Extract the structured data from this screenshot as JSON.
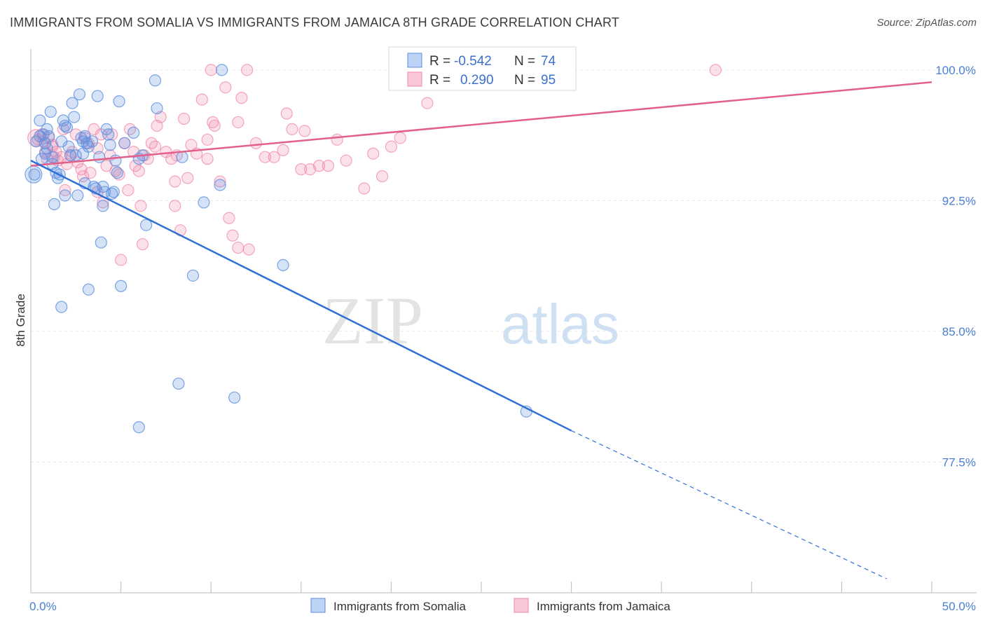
{
  "title": "IMMIGRANTS FROM SOMALIA VS IMMIGRANTS FROM JAMAICA 8TH GRADE CORRELATION CHART",
  "source": "Source: ZipAtlas.com",
  "watermark": {
    "zip": "ZIP",
    "atlas": "atlas"
  },
  "colors": {
    "somalia": "#5b8ee0",
    "somalia_line": "#2f6fd6",
    "jamaica": "#f08aaa",
    "jamaica_line": "#e2608a",
    "tick_text": "#4a7fd1",
    "grid": "#e6e6e6"
  },
  "legend_stats": [
    {
      "r_label": "R =",
      "r_value": "-0.542",
      "n_label": "N =",
      "n_value": "74"
    },
    {
      "r_label": "R =",
      "r_value": "0.290",
      "n_label": "N =",
      "n_value": "95"
    }
  ],
  "chart_data": {
    "type": "scatter",
    "title": "IMMIGRANTS FROM SOMALIA VS IMMIGRANTS FROM JAMAICA 8TH GRADE CORRELATION CHART",
    "ylabel": "8th Grade",
    "xlim": [
      0,
      50
    ],
    "ylim": [
      70,
      101.2
    ],
    "x_tick_labels": [
      "0.0%",
      "50.0%"
    ],
    "y_ticks": [
      77.5,
      85.0,
      92.5,
      100.0
    ],
    "y_tick_labels": [
      "77.5%",
      "85.0%",
      "92.5%",
      "100.0%"
    ],
    "grid": true,
    "legend_position": "bottom",
    "series": [
      {
        "name": "Immigrants from Somalia",
        "color": "#5b8ee0",
        "trend": {
          "x": [
            0,
            30
          ],
          "y": [
            94.8,
            79.3
          ],
          "dashed_to": [
            47.5,
            70.8
          ]
        },
        "points": [
          [
            0.2,
            94.0
          ],
          [
            0.3,
            95.9
          ],
          [
            0.5,
            96.2
          ],
          [
            0.5,
            97.1
          ],
          [
            0.6,
            94.9
          ],
          [
            0.7,
            96.3
          ],
          [
            0.8,
            95.8
          ],
          [
            0.8,
            95.2
          ],
          [
            0.9,
            95.5
          ],
          [
            1.0,
            96.2
          ],
          [
            1.1,
            97.6
          ],
          [
            1.2,
            94.6
          ],
          [
            1.2,
            95.0
          ],
          [
            1.3,
            92.3
          ],
          [
            1.4,
            94.1
          ],
          [
            1.5,
            93.8
          ],
          [
            1.6,
            94.0
          ],
          [
            1.7,
            95.9
          ],
          [
            1.8,
            97.1
          ],
          [
            1.9,
            96.8
          ],
          [
            2.0,
            96.7
          ],
          [
            2.1,
            95.6
          ],
          [
            2.2,
            95.1
          ],
          [
            2.3,
            98.1
          ],
          [
            2.4,
            97.3
          ],
          [
            2.5,
            95.1
          ],
          [
            2.6,
            92.8
          ],
          [
            2.7,
            98.6
          ],
          [
            2.8,
            96.1
          ],
          [
            2.9,
            95.2
          ],
          [
            3.0,
            93.5
          ],
          [
            3.1,
            95.8
          ],
          [
            3.2,
            95.6
          ],
          [
            3.4,
            95.9
          ],
          [
            3.5,
            93.3
          ],
          [
            3.6,
            93.2
          ],
          [
            3.7,
            98.5
          ],
          [
            3.8,
            95.0
          ],
          [
            3.9,
            90.1
          ],
          [
            4.0,
            92.2
          ],
          [
            4.1,
            93.0
          ],
          [
            4.2,
            96.6
          ],
          [
            4.3,
            96.3
          ],
          [
            4.4,
            95.7
          ],
          [
            4.5,
            92.9
          ],
          [
            4.6,
            93.0
          ],
          [
            4.7,
            94.8
          ],
          [
            4.8,
            94.1
          ],
          [
            4.9,
            98.2
          ],
          [
            5.0,
            87.6
          ],
          [
            5.7,
            96.4
          ],
          [
            6.0,
            94.9
          ],
          [
            6.2,
            95.1
          ],
          [
            6.4,
            91.1
          ],
          [
            6.9,
            99.4
          ],
          [
            7.0,
            97.8
          ],
          [
            8.4,
            95.0
          ],
          [
            9.0,
            88.2
          ],
          [
            9.6,
            92.4
          ],
          [
            10.5,
            93.4
          ],
          [
            10.6,
            100.0
          ],
          [
            1.7,
            86.4
          ],
          [
            3.2,
            87.4
          ],
          [
            8.2,
            82.0
          ],
          [
            11.3,
            81.2
          ],
          [
            6.0,
            79.5
          ],
          [
            14.0,
            88.8
          ],
          [
            27.5,
            80.4
          ],
          [
            2.9,
            95.9
          ],
          [
            1.9,
            92.8
          ],
          [
            3.0,
            96.2
          ],
          [
            4.0,
            93.3
          ],
          [
            5.2,
            95.8
          ],
          [
            0.9,
            96.6
          ]
        ]
      },
      {
        "name": "Immigrants from Jamaica",
        "color": "#f08aaa",
        "trend": {
          "x": [
            0,
            50
          ],
          "y": [
            94.5,
            99.3
          ]
        },
        "points": [
          [
            0.4,
            96.0
          ],
          [
            0.6,
            96.3
          ],
          [
            0.7,
            95.9
          ],
          [
            0.8,
            95.3
          ],
          [
            0.9,
            94.9
          ],
          [
            1.0,
            96.1
          ],
          [
            1.2,
            95.6
          ],
          [
            1.3,
            95.0
          ],
          [
            1.4,
            95.3
          ],
          [
            1.5,
            94.8
          ],
          [
            1.7,
            95.0
          ],
          [
            1.8,
            96.6
          ],
          [
            1.9,
            93.1
          ],
          [
            2.0,
            94.6
          ],
          [
            2.2,
            95.1
          ],
          [
            2.3,
            95.3
          ],
          [
            2.5,
            96.3
          ],
          [
            2.6,
            94.7
          ],
          [
            2.8,
            94.3
          ],
          [
            2.9,
            93.9
          ],
          [
            3.0,
            96.1
          ],
          [
            3.2,
            95.8
          ],
          [
            3.3,
            94.1
          ],
          [
            3.5,
            96.6
          ],
          [
            3.7,
            95.5
          ],
          [
            3.9,
            96.3
          ],
          [
            4.0,
            92.4
          ],
          [
            4.2,
            94.5
          ],
          [
            4.4,
            95.1
          ],
          [
            4.5,
            96.3
          ],
          [
            4.7,
            94.2
          ],
          [
            4.9,
            94.0
          ],
          [
            5.0,
            89.1
          ],
          [
            5.2,
            95.8
          ],
          [
            5.4,
            93.1
          ],
          [
            5.5,
            96.6
          ],
          [
            5.7,
            95.3
          ],
          [
            5.8,
            94.5
          ],
          [
            6.0,
            94.2
          ],
          [
            6.1,
            92.2
          ],
          [
            6.2,
            90.0
          ],
          [
            6.3,
            95.1
          ],
          [
            6.5,
            94.9
          ],
          [
            6.7,
            95.8
          ],
          [
            6.9,
            95.6
          ],
          [
            7.0,
            96.8
          ],
          [
            7.2,
            97.3
          ],
          [
            7.5,
            95.3
          ],
          [
            7.8,
            94.9
          ],
          [
            8.0,
            92.2
          ],
          [
            8.1,
            95.1
          ],
          [
            8.3,
            90.8
          ],
          [
            8.5,
            97.2
          ],
          [
            8.7,
            93.8
          ],
          [
            8.9,
            95.7
          ],
          [
            9.2,
            95.2
          ],
          [
            9.5,
            98.3
          ],
          [
            9.8,
            94.9
          ],
          [
            10.0,
            100.0
          ],
          [
            10.2,
            96.8
          ],
          [
            10.5,
            93.6
          ],
          [
            10.8,
            99.0
          ],
          [
            11.0,
            91.5
          ],
          [
            11.2,
            90.5
          ],
          [
            11.5,
            97.0
          ],
          [
            11.7,
            98.4
          ],
          [
            12.0,
            100.0
          ],
          [
            12.5,
            95.8
          ],
          [
            13.0,
            95.0
          ],
          [
            13.5,
            95.0
          ],
          [
            14.0,
            95.4
          ],
          [
            14.2,
            97.5
          ],
          [
            14.5,
            96.6
          ],
          [
            15.0,
            94.3
          ],
          [
            15.2,
            96.5
          ],
          [
            15.5,
            94.3
          ],
          [
            16.0,
            94.5
          ],
          [
            16.5,
            94.5
          ],
          [
            17.0,
            96.0
          ],
          [
            17.5,
            94.8
          ],
          [
            18.5,
            93.2
          ],
          [
            19.0,
            95.2
          ],
          [
            19.5,
            93.9
          ],
          [
            20.0,
            95.6
          ],
          [
            20.5,
            96.1
          ],
          [
            22.0,
            98.1
          ],
          [
            23.0,
            100.0
          ],
          [
            38.0,
            100.0
          ],
          [
            11.5,
            89.8
          ],
          [
            12.1,
            89.7
          ],
          [
            8.0,
            93.6
          ],
          [
            3.7,
            93.0
          ],
          [
            1.2,
            95.7
          ],
          [
            10.1,
            97.0
          ],
          [
            9.8,
            96.0
          ]
        ]
      }
    ]
  }
}
